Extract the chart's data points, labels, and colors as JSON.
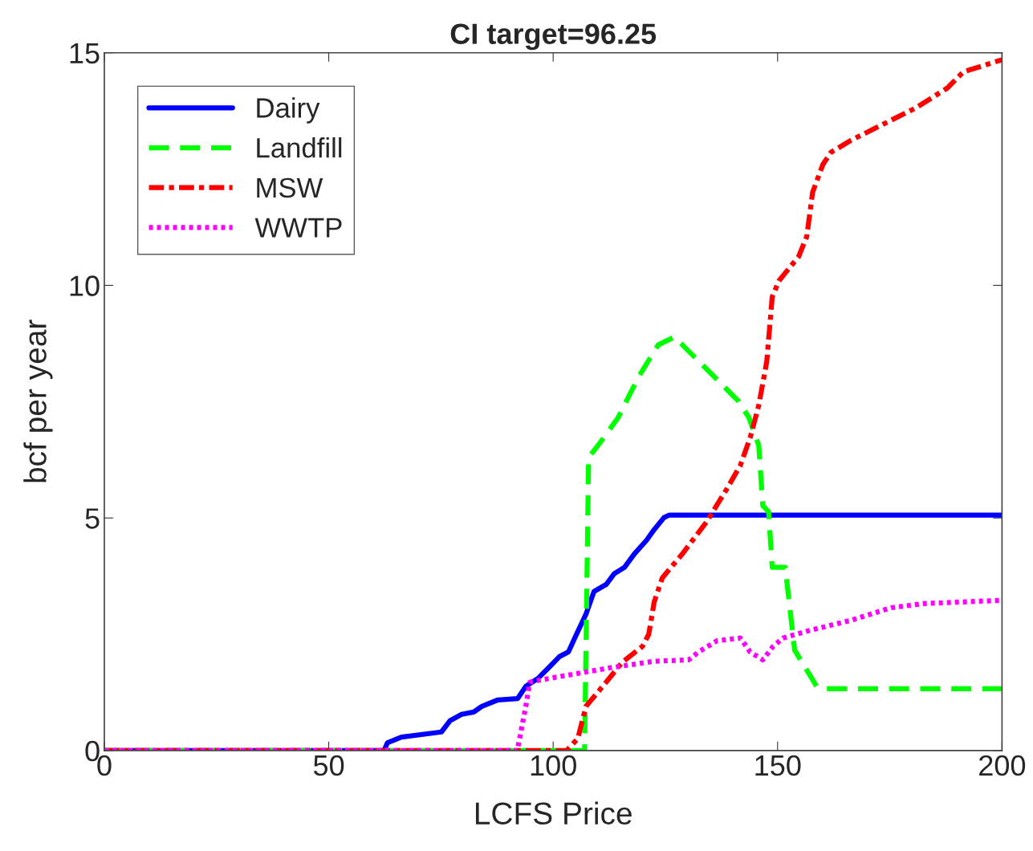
{
  "chart_data": {
    "type": "line",
    "title": "CI target=96.25",
    "xlabel": "LCFS Price",
    "ylabel": "bcf per year",
    "xlim": [
      0,
      200
    ],
    "ylim": [
      0,
      15
    ],
    "xticks": [
      0,
      50,
      100,
      150,
      200
    ],
    "yticks": [
      0,
      5,
      10,
      15
    ],
    "grid": false,
    "legend": "top left",
    "series": [
      {
        "name": "Dairy",
        "color": "#0000ff",
        "line_style": "solid",
        "x": [
          0,
          62.3,
          63.1,
          66.2,
          75.1,
          77,
          79.6,
          82.3,
          84.1,
          87.7,
          92.1,
          93.9,
          96.6,
          99.3,
          101.4,
          103.4,
          105.2,
          107.3,
          109.1,
          111.8,
          113.6,
          115.9,
          118.1,
          120.8,
          122.5,
          124.7,
          125.8,
          200
        ],
        "values": [
          0,
          0,
          0.17,
          0.29,
          0.4,
          0.64,
          0.78,
          0.83,
          0.95,
          1.09,
          1.12,
          1.38,
          1.55,
          1.81,
          2.02,
          2.12,
          2.5,
          2.93,
          3.42,
          3.57,
          3.8,
          3.94,
          4.23,
          4.52,
          4.75,
          5.01,
          5.06,
          5.06
        ]
      },
      {
        "name": "Landfill",
        "color": "#00ff00",
        "line_style": "dashed",
        "x": [
          0,
          107,
          107.9,
          110,
          114.5,
          119,
          123.4,
          127,
          128.8,
          134.2,
          141.3,
          143.6,
          145.8,
          146.7,
          148,
          148.8,
          151.7,
          153.8,
          158.7,
          160.1,
          200
        ],
        "values": [
          0,
          0,
          6.3,
          6.56,
          7.16,
          8.03,
          8.72,
          8.89,
          8.72,
          8.2,
          7.51,
          7.16,
          6.56,
          5.27,
          5.13,
          3.94,
          3.94,
          2.16,
          1.38,
          1.33,
          1.33
        ]
      },
      {
        "name": "MSW",
        "color": "#ff0000",
        "line_style": "dashdot",
        "x": [
          0,
          103,
          105.5,
          107.3,
          111.8,
          115.4,
          119.9,
          121.3,
          122.5,
          124.3,
          128.8,
          134.2,
          138.6,
          141.7,
          143.9,
          145.8,
          147.6,
          148.8,
          150.3,
          154.7,
          156.5,
          157.8,
          160.1,
          161.9,
          166.4,
          175.3,
          180.7,
          187.8,
          191.4,
          200
        ],
        "values": [
          0,
          0,
          0.26,
          0.95,
          1.47,
          1.9,
          2.24,
          2.5,
          3.19,
          3.71,
          4.23,
          4.92,
          5.61,
          6.13,
          6.73,
          7.42,
          8.37,
          9.75,
          10.1,
          10.62,
          11.05,
          12.0,
          12.6,
          12.86,
          13.12,
          13.55,
          13.81,
          14.24,
          14.59,
          14.85
        ]
      },
      {
        "name": "WWTP",
        "color": "#ff00ff",
        "line_style": "dotted",
        "x": [
          0,
          92,
          93.9,
          94.8,
          96.2,
          102,
          112.7,
          122.5,
          130.2,
          132.4,
          136.5,
          141.7,
          143.9,
          146.7,
          149,
          151.2,
          157.4,
          166.4,
          175.3,
          182.5,
          200
        ],
        "values": [
          0,
          0,
          0.95,
          1.47,
          1.5,
          1.6,
          1.78,
          1.92,
          1.95,
          2.12,
          2.36,
          2.42,
          2.12,
          1.95,
          2.24,
          2.42,
          2.59,
          2.8,
          3.07,
          3.16,
          3.23
        ]
      }
    ]
  }
}
